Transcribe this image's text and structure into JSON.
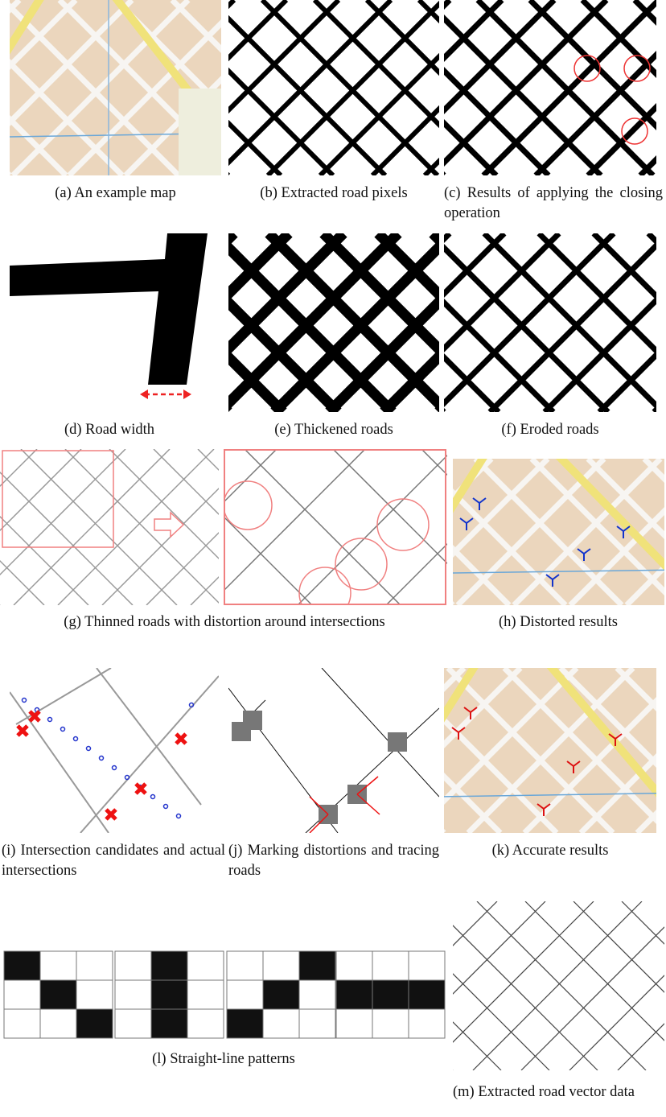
{
  "figure": {
    "panels": [
      {
        "caption": "(a) An example map"
      },
      {
        "caption": "(b) Extracted road pixels"
      },
      {
        "caption": "(c) Results of applying the closing operation"
      },
      {
        "caption": "(d) Road width"
      },
      {
        "caption": "(e) Thickened roads"
      },
      {
        "caption": "(f) Eroded roads"
      },
      {
        "caption": "(g) Thinned roads with distortion around intersections"
      },
      {
        "caption": "(h) Distorted results"
      },
      {
        "caption": "(i) Intersection candidates and actual intersections"
      },
      {
        "caption": "(j) Marking distortions and tracing roads"
      },
      {
        "caption": "(k) Accurate results"
      },
      {
        "caption": "(l) Straight-line patterns"
      },
      {
        "caption": "(m) Extracted road vector data"
      }
    ]
  }
}
